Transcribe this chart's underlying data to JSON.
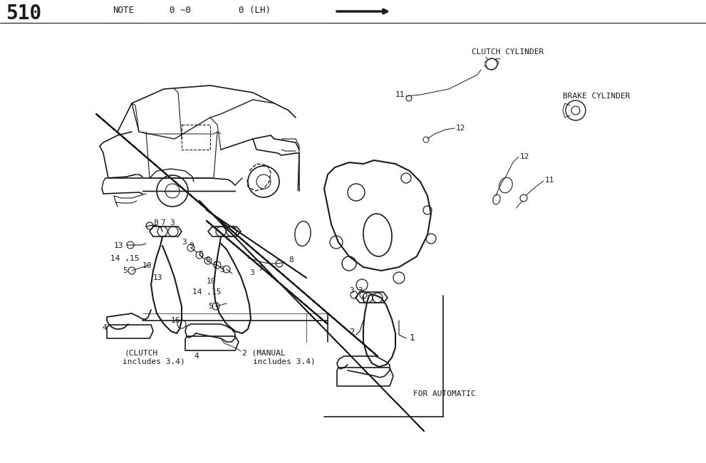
{
  "page_number": "510",
  "header_note": "NOTE",
  "header_range": "0 ~0",
  "header_lh": "0 (LH)",
  "bg_color": "#ffffff",
  "line_color": "#1a1a1a",
  "text_color": "#1a1a1a",
  "fig_w": 9.91,
  "fig_h": 6.5,
  "dpi": 100,
  "labels": {
    "clutch_cylinder": "CLUTCH CYLINDER",
    "brake_cylinder": "BRAKE CYLINDER",
    "for_automatic": "FOR AUTOMATIC"
  }
}
